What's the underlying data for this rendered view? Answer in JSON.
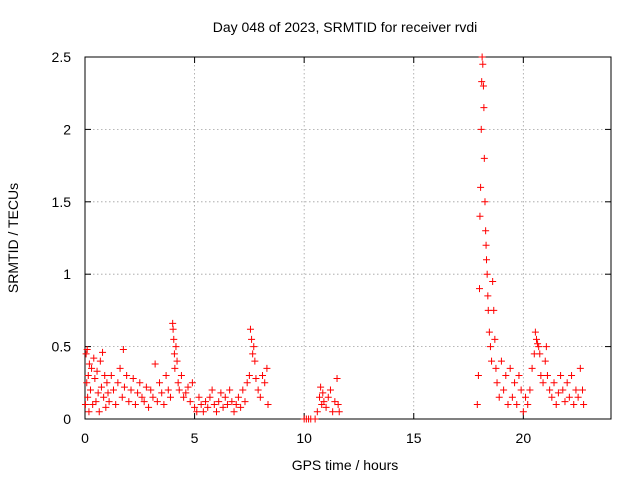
{
  "chart_data": {
    "type": "scatter",
    "title": "Day 048 of 2023, SRMTID for receiver rvdi",
    "xlabel": "GPS time / hours",
    "ylabel": "SRMTID / TECUs",
    "xlim": [
      0,
      24
    ],
    "ylim": [
      0,
      2.5
    ],
    "xticks": [
      0,
      5,
      10,
      15,
      20
    ],
    "xtick_labels": [
      "0",
      "5",
      "10",
      "15",
      "20"
    ],
    "yticks": [
      0,
      0.5,
      1,
      1.5,
      2,
      2.5
    ],
    "ytick_labels": [
      "0",
      "0.5",
      "1",
      "1.5",
      "2",
      "2.5"
    ],
    "grid": true,
    "marker": "+",
    "color": "#ff0000",
    "series": [
      {
        "name": "rvdi",
        "x": [
          0.02,
          0.05,
          0.08,
          0.1,
          0.12,
          0.15,
          0.18,
          0.2,
          0.25,
          0.3,
          0.35,
          0.4,
          0.45,
          0.5,
          0.55,
          0.6,
          0.65,
          0.7,
          0.75,
          0.8,
          0.85,
          0.9,
          0.95,
          1.0,
          1.05,
          1.1,
          1.2,
          1.3,
          1.4,
          1.5,
          1.6,
          1.7,
          1.75,
          1.8,
          1.9,
          2.0,
          2.1,
          2.2,
          2.3,
          2.4,
          2.5,
          2.6,
          2.7,
          2.8,
          2.9,
          3.0,
          3.1,
          3.2,
          3.3,
          3.4,
          3.5,
          3.6,
          3.7,
          3.8,
          3.9,
          4.0,
          4.02,
          4.05,
          4.08,
          4.1,
          4.15,
          4.2,
          4.25,
          4.3,
          4.4,
          4.5,
          4.6,
          4.7,
          4.8,
          4.9,
          5.0,
          5.1,
          5.2,
          5.3,
          5.4,
          5.5,
          5.6,
          5.7,
          5.8,
          5.9,
          6.0,
          6.1,
          6.2,
          6.3,
          6.4,
          6.5,
          6.6,
          6.7,
          6.8,
          6.9,
          7.0,
          7.1,
          7.2,
          7.3,
          7.4,
          7.5,
          7.55,
          7.6,
          7.65,
          7.7,
          7.75,
          7.8,
          7.9,
          8.0,
          8.1,
          8.2,
          8.3,
          8.35,
          10.0,
          10.1,
          10.2,
          10.3,
          10.5,
          10.6,
          10.7,
          10.75,
          10.8,
          10.85,
          10.9,
          11.0,
          11.1,
          11.2,
          11.3,
          11.4,
          11.5,
          11.55,
          11.6,
          17.9,
          17.95,
          18.0,
          18.02,
          18.05,
          18.08,
          18.1,
          18.12,
          18.15,
          18.18,
          18.2,
          18.22,
          18.25,
          18.28,
          18.3,
          18.32,
          18.35,
          18.38,
          18.4,
          18.45,
          18.5,
          18.55,
          18.6,
          18.65,
          18.7,
          18.75,
          18.8,
          18.9,
          19.0,
          19.1,
          19.2,
          19.3,
          19.4,
          19.5,
          19.6,
          19.7,
          19.8,
          19.9,
          20.0,
          20.1,
          20.2,
          20.3,
          20.4,
          20.5,
          20.55,
          20.6,
          20.65,
          20.7,
          20.75,
          20.8,
          20.9,
          21.0,
          21.05,
          21.1,
          21.2,
          21.3,
          21.4,
          21.5,
          21.6,
          21.7,
          21.8,
          21.9,
          22.0,
          22.1,
          22.2,
          22.3,
          22.4,
          22.5,
          22.6,
          22.7,
          22.75
        ],
        "y": [
          0.1,
          0.45,
          0.25,
          0.48,
          0.15,
          0.3,
          0.05,
          0.38,
          0.2,
          0.35,
          0.1,
          0.42,
          0.28,
          0.12,
          0.33,
          0.18,
          0.05,
          0.4,
          0.22,
          0.46,
          0.15,
          0.3,
          0.08,
          0.25,
          0.18,
          0.12,
          0.3,
          0.2,
          0.1,
          0.25,
          0.35,
          0.15,
          0.48,
          0.22,
          0.3,
          0.12,
          0.2,
          0.28,
          0.1,
          0.18,
          0.25,
          0.15,
          0.12,
          0.22,
          0.08,
          0.2,
          0.15,
          0.38,
          0.12,
          0.25,
          0.18,
          0.1,
          0.3,
          0.2,
          0.15,
          0.66,
          0.62,
          0.55,
          0.45,
          0.35,
          0.5,
          0.4,
          0.25,
          0.2,
          0.3,
          0.15,
          0.18,
          0.22,
          0.12,
          0.25,
          0.08,
          0.05,
          0.15,
          0.1,
          0.05,
          0.12,
          0.08,
          0.15,
          0.2,
          0.1,
          0.05,
          0.12,
          0.18,
          0.08,
          0.15,
          0.1,
          0.2,
          0.12,
          0.05,
          0.1,
          0.15,
          0.08,
          0.2,
          0.12,
          0.25,
          0.3,
          0.62,
          0.55,
          0.45,
          0.5,
          0.4,
          0.28,
          0.2,
          0.15,
          0.3,
          0.25,
          0.35,
          0.1,
          0.0,
          0.0,
          0.0,
          0.0,
          0.0,
          0.05,
          0.15,
          0.22,
          0.1,
          0.18,
          0.12,
          0.08,
          0.15,
          0.2,
          0.05,
          0.12,
          0.28,
          0.1,
          0.05,
          0.1,
          0.3,
          0.9,
          1.4,
          1.6,
          2.0,
          2.33,
          2.5,
          2.45,
          2.3,
          2.15,
          1.8,
          1.5,
          1.3,
          1.2,
          1.1,
          1.0,
          0.85,
          0.75,
          0.6,
          0.5,
          0.4,
          0.95,
          0.75,
          0.55,
          0.35,
          0.25,
          0.15,
          0.4,
          0.2,
          0.3,
          0.1,
          0.35,
          0.15,
          0.25,
          0.1,
          0.3,
          0.2,
          0.05,
          0.15,
          0.1,
          0.2,
          0.35,
          0.45,
          0.6,
          0.55,
          0.52,
          0.5,
          0.45,
          0.3,
          0.25,
          0.4,
          0.5,
          0.3,
          0.2,
          0.15,
          0.25,
          0.1,
          0.18,
          0.3,
          0.2,
          0.12,
          0.25,
          0.15,
          0.3,
          0.1,
          0.2,
          0.15,
          0.35,
          0.2,
          0.1
        ]
      }
    ]
  }
}
